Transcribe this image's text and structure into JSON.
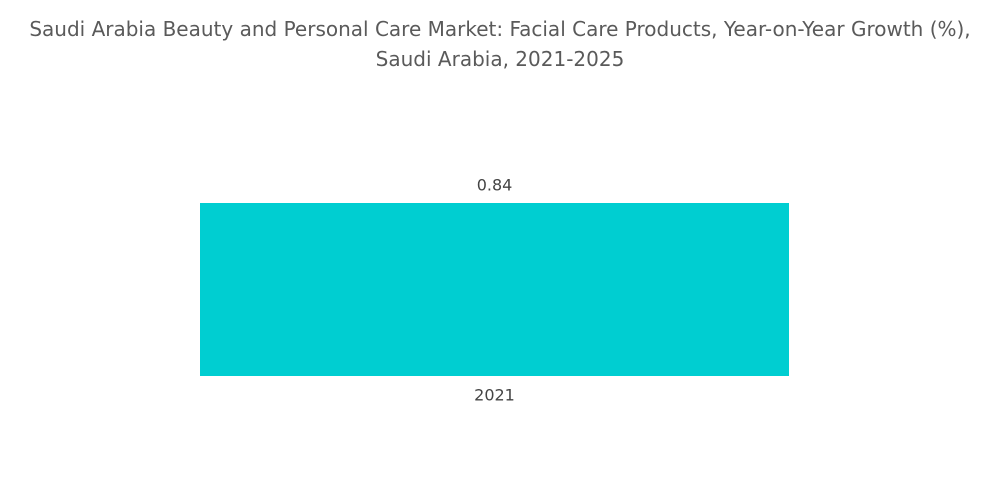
{
  "chart_data": {
    "type": "bar",
    "title": "Saudi Arabia Beauty and Personal Care Market: Facial Care Products, Year-on-Year Growth (%), Saudi Arabia, 2021-2025",
    "categories": [
      "2021"
    ],
    "values": [
      0.84
    ],
    "color": "#00ced1"
  }
}
